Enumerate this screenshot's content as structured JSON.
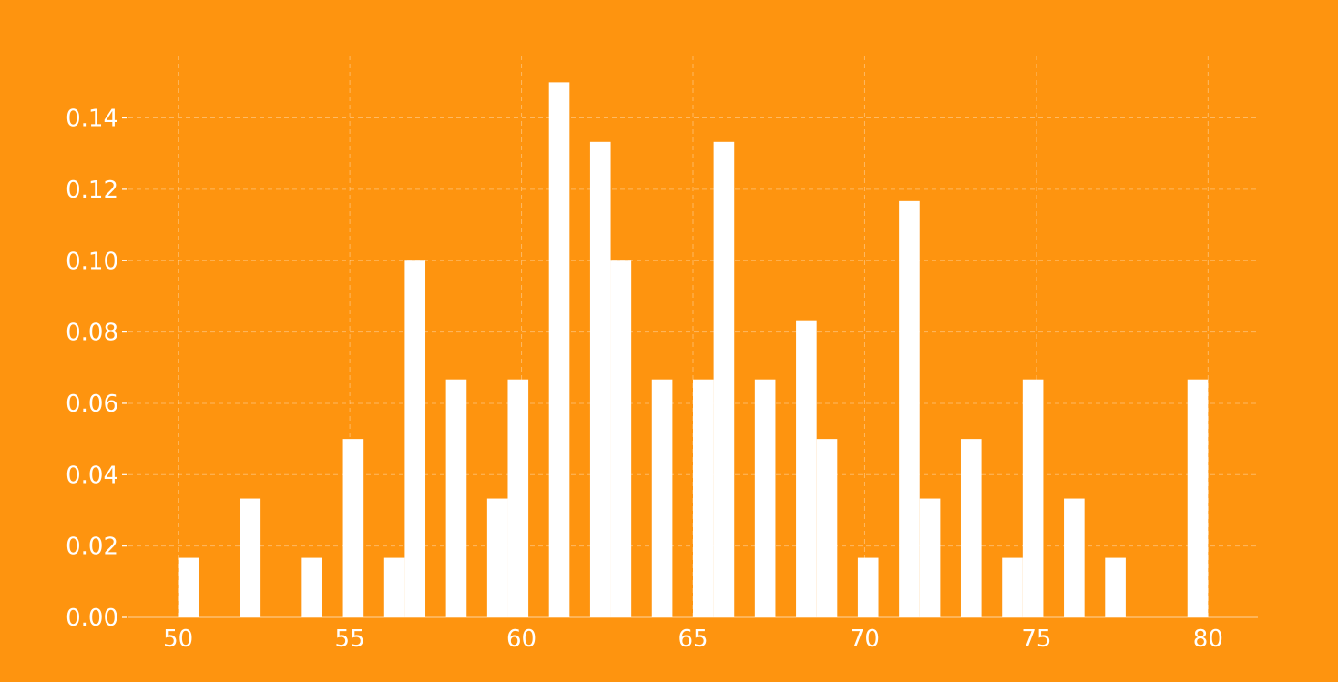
{
  "chart_data": {
    "type": "bar",
    "title": "",
    "xlabel": "",
    "ylabel": "",
    "xlim": [
      48.55,
      81.45
    ],
    "ylim": [
      0,
      0.1575
    ],
    "grid": true,
    "background": "#FE940F",
    "bar_color": "#FFFFFF",
    "x_ticks": [
      "50",
      "55",
      "60",
      "65",
      "70",
      "75",
      "80"
    ],
    "x_tick_values": [
      50,
      55,
      60,
      65,
      70,
      75,
      80
    ],
    "y_ticks": [
      "0.00",
      "0.02",
      "0.04",
      "0.06",
      "0.08",
      "0.10",
      "0.12",
      "0.14"
    ],
    "y_tick_values": [
      0,
      0.02,
      0.04,
      0.06,
      0.08,
      0.1,
      0.12,
      0.14
    ],
    "bins": [
      {
        "x0": 50.0,
        "x1": 50.6,
        "value": 0.0167
      },
      {
        "x0": 51.8,
        "x1": 52.4,
        "value": 0.0333
      },
      {
        "x0": 53.6,
        "x1": 54.2,
        "value": 0.0167
      },
      {
        "x0": 54.8,
        "x1": 55.4,
        "value": 0.05
      },
      {
        "x0": 56.0,
        "x1": 56.6,
        "value": 0.0167
      },
      {
        "x0": 56.6,
        "x1": 57.2,
        "value": 0.1
      },
      {
        "x0": 57.8,
        "x1": 58.4,
        "value": 0.0667
      },
      {
        "x0": 59.0,
        "x1": 59.6,
        "value": 0.0333
      },
      {
        "x0": 59.6,
        "x1": 60.2,
        "value": 0.0667
      },
      {
        "x0": 60.8,
        "x1": 61.4,
        "value": 0.15
      },
      {
        "x0": 62.0,
        "x1": 62.6,
        "value": 0.1333
      },
      {
        "x0": 62.6,
        "x1": 63.2,
        "value": 0.1
      },
      {
        "x0": 63.8,
        "x1": 64.4,
        "value": 0.0667
      },
      {
        "x0": 65.0,
        "x1": 65.6,
        "value": 0.0667
      },
      {
        "x0": 65.6,
        "x1": 66.2,
        "value": 0.1333
      },
      {
        "x0": 66.8,
        "x1": 67.4,
        "value": 0.0667
      },
      {
        "x0": 68.0,
        "x1": 68.6,
        "value": 0.0833
      },
      {
        "x0": 68.6,
        "x1": 69.2,
        "value": 0.05
      },
      {
        "x0": 69.8,
        "x1": 70.4,
        "value": 0.0167
      },
      {
        "x0": 71.0,
        "x1": 71.6,
        "value": 0.1167
      },
      {
        "x0": 71.6,
        "x1": 72.2,
        "value": 0.0333
      },
      {
        "x0": 72.8,
        "x1": 73.4,
        "value": 0.05
      },
      {
        "x0": 74.0,
        "x1": 74.6,
        "value": 0.0167
      },
      {
        "x0": 74.6,
        "x1": 75.2,
        "value": 0.0667
      },
      {
        "x0": 75.8,
        "x1": 76.4,
        "value": 0.0333
      },
      {
        "x0": 77.0,
        "x1": 77.6,
        "value": 0.0167
      },
      {
        "x0": 79.4,
        "x1": 80.0,
        "value": 0.0667
      }
    ]
  }
}
